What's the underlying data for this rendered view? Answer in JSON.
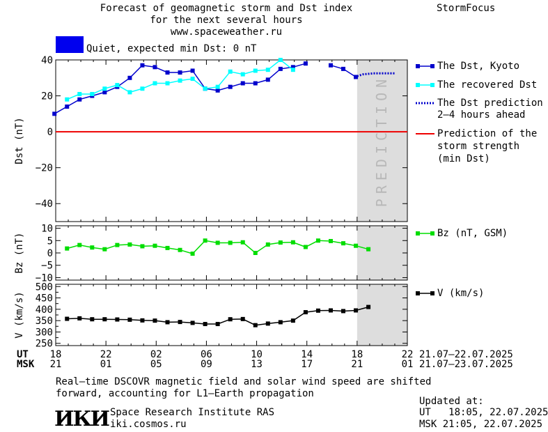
{
  "header": {
    "title_lines": [
      "Forecast of geomagnetic storm and Dst index",
      "for the next several hours",
      "www.spaceweather.ru"
    ],
    "brand": "StormFocus",
    "status_text": "Quiet, expected min Dst: 0 nT",
    "status_color": "#0000ee"
  },
  "legend": {
    "dst": "The Dst, Kyoto",
    "recovered": "The recovered Dst",
    "prediction": [
      "The Dst prediction",
      "2–4 hours ahead"
    ],
    "storm": [
      "Prediction of the",
      "storm strength",
      "(min Dst)"
    ],
    "bz": "Bz (nT, GSM)",
    "v": "V (km/s)"
  },
  "time_axis": {
    "ut_label": "UT",
    "msk_label": "MSK",
    "ut_ticks": [
      "18",
      "22",
      "02",
      "06",
      "10",
      "14",
      "18",
      "22"
    ],
    "msk_ticks": [
      "21",
      "01",
      "05",
      "09",
      "13",
      "17",
      "21",
      "01"
    ],
    "ut_range": "21.07–22.07.2025",
    "msk_range": "21.07–23.07.2025"
  },
  "footer": {
    "note_lines": [
      "Real–time DSCOVR magnetic field and solar wind speed are shifted",
      "forward, accounting for L1–Earth propagation"
    ],
    "institute": "Space Research Institute RAS",
    "site": "iki.cosmos.ru",
    "logo_text": "ИКИ",
    "updated_label": "Updated at:",
    "updated_ut": "UT   18:05, 22.07.2025",
    "updated_msk": "MSK 21:05, 22.07.2025"
  },
  "chart_data": {
    "type": "line",
    "x_unit": "hours from 18 UT 21.07.2025",
    "x_range": [
      0,
      28
    ],
    "prediction_band": [
      24,
      28
    ],
    "prediction_text": "PREDICTION",
    "colors": {
      "dst": "#0000cc",
      "recovered": "#00ffff",
      "prediction": "#0000cc",
      "storm": "#ee0000",
      "bz": "#00dd00",
      "v": "#000000",
      "band": "#dddddd"
    },
    "panels": [
      {
        "id": "dst",
        "ylabel": "Dst (nT)",
        "ylim": [
          -50,
          40
        ],
        "ticks": [
          40,
          20,
          0,
          -20,
          -40
        ],
        "series": [
          {
            "name": "The Dst, Kyoto",
            "style": "squares",
            "segments": [
              [
                [
                  -0.1,
                  10
                ],
                [
                  0.9,
                  14
                ],
                [
                  1.9,
                  18
                ],
                [
                  2.9,
                  20
                ],
                [
                  3.9,
                  22
                ],
                [
                  4.9,
                  25
                ],
                [
                  5.9,
                  30
                ],
                [
                  6.9,
                  37
                ],
                [
                  7.9,
                  36
                ],
                [
                  8.9,
                  33
                ],
                [
                  9.9,
                  33
                ],
                [
                  10.9,
                  34
                ],
                [
                  11.9,
                  24
                ],
                [
                  12.9,
                  23
                ],
                [
                  13.9,
                  25
                ],
                [
                  14.9,
                  27
                ],
                [
                  15.9,
                  27
                ],
                [
                  16.9,
                  29
                ],
                [
                  17.9,
                  35
                ],
                [
                  18.9,
                  36
                ],
                [
                  19.9,
                  38
                ]
              ],
              [
                [
                  21.9,
                  37
                ],
                [
                  22.9,
                  35
                ],
                [
                  23.9,
                  30.5
                ]
              ]
            ]
          },
          {
            "name": "The recovered Dst",
            "style": "squares",
            "segments": [
              [
                [
                  0.9,
                  18
                ],
                [
                  1.9,
                  21
                ],
                [
                  2.9,
                  21
                ],
                [
                  3.9,
                  24
                ],
                [
                  4.9,
                  26
                ],
                [
                  5.9,
                  22
                ],
                [
                  6.9,
                  24
                ],
                [
                  7.9,
                  27
                ],
                [
                  8.9,
                  27
                ],
                [
                  9.9,
                  28.5
                ],
                [
                  10.9,
                  29.5
                ],
                [
                  11.9,
                  24
                ],
                [
                  12.9,
                  25
                ],
                [
                  13.9,
                  33.5
                ],
                [
                  14.9,
                  32
                ],
                [
                  15.9,
                  34
                ],
                [
                  16.9,
                  34.5
                ],
                [
                  17.9,
                  40
                ],
                [
                  18.9,
                  34.5
                ]
              ]
            ]
          },
          {
            "name": "The Dst prediction 2–4 hours ahead",
            "style": "dotted",
            "segments": [
              [
                [
                  24,
                  31
                ],
                [
                  24.5,
                  32
                ],
                [
                  25.3,
                  32.5
                ],
                [
                  26,
                  32.5
                ],
                [
                  27,
                  32.5
                ]
              ]
            ]
          },
          {
            "name": "Prediction of the storm strength (min Dst)",
            "style": "hline",
            "y": 0
          }
        ]
      },
      {
        "id": "bz",
        "ylabel": "Bz (nT)",
        "ylim": [
          -11,
          11
        ],
        "ticks": [
          10,
          5,
          0,
          -5,
          -10
        ],
        "series": [
          {
            "name": "Bz (nT, GSM)",
            "style": "squares",
            "segments": [
              [
                [
                  0.9,
                  1.8
                ],
                [
                  1.9,
                  3.2
                ],
                [
                  2.9,
                  2.2
                ],
                [
                  3.9,
                  1.5
                ],
                [
                  4.9,
                  3.2
                ],
                [
                  5.9,
                  3.4
                ],
                [
                  6.9,
                  2.7
                ],
                [
                  7.9,
                  2.9
                ],
                [
                  8.9,
                  2.0
                ],
                [
                  9.9,
                  1.2
                ],
                [
                  10.9,
                  -0.3
                ],
                [
                  11.9,
                  5.0
                ],
                [
                  12.9,
                  4.1
                ],
                [
                  13.9,
                  4.1
                ],
                [
                  14.9,
                  4.3
                ],
                [
                  15.9,
                  0.0
                ],
                [
                  16.9,
                  3.4
                ],
                [
                  17.9,
                  4.2
                ],
                [
                  18.9,
                  4.3
                ],
                [
                  19.9,
                  2.4
                ],
                [
                  20.9,
                  5.0
                ],
                [
                  21.9,
                  4.8
                ],
                [
                  22.9,
                  3.9
                ],
                [
                  23.9,
                  2.9
                ],
                [
                  24.9,
                  1.5
                ]
              ]
            ]
          }
        ]
      },
      {
        "id": "v",
        "ylabel": "V (km/s)",
        "ylim": [
          240,
          510
        ],
        "ticks": [
          500,
          450,
          400,
          350,
          300,
          250
        ],
        "minor": [
          475,
          425,
          375,
          325,
          275
        ],
        "series": [
          {
            "name": "V (km/s)",
            "style": "squares",
            "segments": [
              [
                [
                  0.9,
                  358
                ],
                [
                  1.9,
                  360
                ],
                [
                  2.9,
                  356
                ],
                [
                  3.9,
                  356
                ],
                [
                  4.9,
                  355
                ],
                [
                  5.9,
                  354
                ],
                [
                  6.9,
                  351
                ],
                [
                  7.9,
                  350
                ],
                [
                  8.9,
                  343
                ],
                [
                  9.9,
                  344
                ],
                [
                  10.9,
                  340
                ],
                [
                  11.9,
                  335
                ],
                [
                  12.9,
                  335
                ],
                [
                  13.9,
                  356
                ],
                [
                  14.9,
                  357
                ],
                [
                  15.9,
                  330
                ],
                [
                  16.9,
                  337
                ],
                [
                  17.9,
                  343
                ],
                [
                  18.9,
                  350
                ],
                [
                  19.9,
                  387
                ],
                [
                  20.9,
                  394
                ],
                [
                  21.9,
                  395
                ],
                [
                  22.9,
                  392
                ],
                [
                  23.9,
                  395
                ],
                [
                  24.9,
                  410
                ]
              ]
            ]
          }
        ]
      }
    ]
  }
}
